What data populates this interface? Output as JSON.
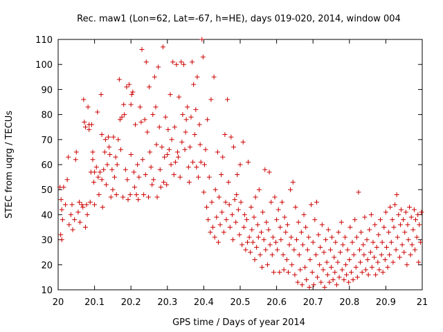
{
  "chart_data": {
    "type": "scatter",
    "title": "Rec. maw1 (Lon=62, Lat=-67, h=HE), days 019-020, 2014, window 004",
    "xlabel": "GPS time / Days of year 2014",
    "ylabel": "STEC from uqrg / TECUs",
    "xlim": [
      20,
      21
    ],
    "ylim": [
      10,
      110
    ],
    "xticks": [
      "20",
      "20.1",
      "20.2",
      "20.3",
      "20.4",
      "20.5",
      "20.6",
      "20.7",
      "20.8",
      "20.9",
      "21"
    ],
    "yticks": [
      "10",
      "20",
      "30",
      "40",
      "50",
      "60",
      "70",
      "80",
      "90",
      "100",
      "110"
    ],
    "grid": false,
    "legend": "none",
    "marker": "plus",
    "color": "#cc0000",
    "points": [
      [
        20.005,
        51
      ],
      [
        20.008,
        46
      ],
      [
        20.01,
        42
      ],
      [
        20.012,
        38
      ],
      [
        20.007,
        32
      ],
      [
        20.01,
        30
      ],
      [
        20.015,
        51
      ],
      [
        20.02,
        44
      ],
      [
        20.025,
        54
      ],
      [
        20.028,
        63
      ],
      [
        20.03,
        36
      ],
      [
        20.035,
        40
      ],
      [
        20.038,
        44
      ],
      [
        20.04,
        34
      ],
      [
        20.045,
        38
      ],
      [
        20.048,
        62
      ],
      [
        20.05,
        65
      ],
      [
        20.055,
        41
      ],
      [
        20.058,
        45
      ],
      [
        20.06,
        37
      ],
      [
        20.065,
        44
      ],
      [
        20.068,
        43
      ],
      [
        20.07,
        86
      ],
      [
        20.072,
        77
      ],
      [
        20.075,
        75
      ],
      [
        20.075,
        35
      ],
      [
        20.078,
        44
      ],
      [
        20.08,
        40
      ],
      [
        20.082,
        83
      ],
      [
        20.085,
        76
      ],
      [
        20.085,
        74
      ],
      [
        20.088,
        45
      ],
      [
        20.09,
        57
      ],
      [
        20.092,
        76
      ],
      [
        20.095,
        65
      ],
      [
        20.095,
        62
      ],
      [
        20.098,
        53
      ],
      [
        20.1,
        44
      ],
      [
        20.1,
        57
      ],
      [
        20.105,
        59
      ],
      [
        20.108,
        81
      ],
      [
        20.11,
        55
      ],
      [
        20.112,
        48
      ],
      [
        20.115,
        57
      ],
      [
        20.118,
        88
      ],
      [
        20.12,
        72
      ],
      [
        20.12,
        54
      ],
      [
        20.122,
        43
      ],
      [
        20.125,
        58
      ],
      [
        20.128,
        65
      ],
      [
        20.13,
        70
      ],
      [
        20.132,
        52
      ],
      [
        20.135,
        60
      ],
      [
        20.138,
        71
      ],
      [
        20.14,
        67
      ],
      [
        20.142,
        64
      ],
      [
        20.145,
        47
      ],
      [
        20.148,
        58
      ],
      [
        20.15,
        50
      ],
      [
        20.152,
        71
      ],
      [
        20.155,
        55
      ],
      [
        20.158,
        63
      ],
      [
        20.16,
        48
      ],
      [
        20.162,
        60
      ],
      [
        20.165,
        70
      ],
      [
        20.168,
        94
      ],
      [
        20.17,
        78
      ],
      [
        20.172,
        66
      ],
      [
        20.175,
        79
      ],
      [
        20.178,
        47
      ],
      [
        20.18,
        84
      ],
      [
        20.182,
        80
      ],
      [
        20.185,
        58
      ],
      [
        20.188,
        91
      ],
      [
        20.19,
        54
      ],
      [
        20.192,
        46
      ],
      [
        20.195,
        92
      ],
      [
        20.198,
        48
      ],
      [
        20.2,
        64
      ],
      [
        20.2,
        84
      ],
      [
        20.202,
        88
      ],
      [
        20.205,
        89
      ],
      [
        20.208,
        57
      ],
      [
        20.21,
        51
      ],
      [
        20.212,
        76
      ],
      [
        20.215,
        48
      ],
      [
        20.218,
        60
      ],
      [
        20.22,
        46
      ],
      [
        20.222,
        55
      ],
      [
        20.225,
        83
      ],
      [
        20.228,
        77
      ],
      [
        20.23,
        106
      ],
      [
        20.232,
        62
      ],
      [
        20.235,
        48
      ],
      [
        20.238,
        78
      ],
      [
        20.24,
        56
      ],
      [
        20.242,
        101
      ],
      [
        20.245,
        73
      ],
      [
        20.248,
        47
      ],
      [
        20.25,
        91
      ],
      [
        20.252,
        65
      ],
      [
        20.255,
        59
      ],
      [
        20.258,
        52
      ],
      [
        20.26,
        80
      ],
      [
        20.262,
        54
      ],
      [
        20.265,
        95
      ],
      [
        20.268,
        83
      ],
      [
        20.27,
        68
      ],
      [
        20.272,
        47
      ],
      [
        20.275,
        99
      ],
      [
        20.278,
        75
      ],
      [
        20.28,
        58
      ],
      [
        20.282,
        51
      ],
      [
        20.285,
        67
      ],
      [
        20.288,
        107
      ],
      [
        20.29,
        53
      ],
      [
        20.292,
        63
      ],
      [
        20.295,
        79
      ],
      [
        20.298,
        52
      ],
      [
        20.3,
        64
      ],
      [
        20.302,
        74
      ],
      [
        20.305,
        66
      ],
      [
        20.308,
        88
      ],
      [
        20.31,
        60
      ],
      [
        20.312,
        70
      ],
      [
        20.315,
        101
      ],
      [
        20.318,
        56
      ],
      [
        20.32,
        75
      ],
      [
        20.322,
        61
      ],
      [
        20.325,
        100
      ],
      [
        20.328,
        65
      ],
      [
        20.33,
        63
      ],
      [
        20.332,
        87
      ],
      [
        20.335,
        55
      ],
      [
        20.338,
        101
      ],
      [
        20.34,
        69
      ],
      [
        20.342,
        80
      ],
      [
        20.345,
        100
      ],
      [
        20.348,
        66
      ],
      [
        20.35,
        73
      ],
      [
        20.352,
        78
      ],
      [
        20.355,
        83
      ],
      [
        20.358,
        59
      ],
      [
        20.36,
        53
      ],
      [
        20.362,
        67
      ],
      [
        20.365,
        79
      ],
      [
        20.368,
        101
      ],
      [
        20.37,
        61
      ],
      [
        20.372,
        92
      ],
      [
        20.375,
        72
      ],
      [
        20.378,
        82
      ],
      [
        20.38,
        59
      ],
      [
        20.382,
        95
      ],
      [
        20.385,
        55
      ],
      [
        20.388,
        76
      ],
      [
        20.39,
        68
      ],
      [
        20.392,
        61
      ],
      [
        20.395,
        110
      ],
      [
        20.398,
        103
      ],
      [
        20.4,
        49
      ],
      [
        20.402,
        60
      ],
      [
        20.405,
        66
      ],
      [
        20.408,
        43
      ],
      [
        20.41,
        78
      ],
      [
        20.412,
        38
      ],
      [
        20.415,
        55
      ],
      [
        20.418,
        33
      ],
      [
        20.42,
        86
      ],
      [
        20.422,
        45
      ],
      [
        20.425,
        35
      ],
      [
        20.428,
        95
      ],
      [
        20.43,
        31
      ],
      [
        20.432,
        50
      ],
      [
        20.435,
        39
      ],
      [
        20.438,
        65
      ],
      [
        20.44,
        29
      ],
      [
        20.442,
        47
      ],
      [
        20.445,
        36
      ],
      [
        20.448,
        56
      ],
      [
        20.45,
        41
      ],
      [
        20.452,
        63
      ],
      [
        20.455,
        33
      ],
      [
        20.458,
        72
      ],
      [
        20.46,
        45
      ],
      [
        20.462,
        38
      ],
      [
        20.465,
        86
      ],
      [
        20.468,
        53
      ],
      [
        20.47,
        44
      ],
      [
        20.472,
        35
      ],
      [
        20.475,
        71
      ],
      [
        20.478,
        40
      ],
      [
        20.48,
        30
      ],
      [
        20.482,
        67
      ],
      [
        20.485,
        46
      ],
      [
        20.488,
        37
      ],
      [
        20.49,
        48
      ],
      [
        20.492,
        56
      ],
      [
        20.495,
        42
      ],
      [
        20.498,
        32
      ],
      [
        20.5,
        60
      ],
      [
        20.502,
        45
      ],
      [
        20.505,
        28
      ],
      [
        20.508,
        69
      ],
      [
        20.51,
        35
      ],
      [
        20.512,
        40
      ],
      [
        20.515,
        26
      ],
      [
        20.518,
        38
      ],
      [
        20.52,
        29
      ],
      [
        20.522,
        61
      ],
      [
        20.525,
        31
      ],
      [
        20.528,
        25
      ],
      [
        20.53,
        43
      ],
      [
        20.532,
        34
      ],
      [
        20.535,
        29
      ],
      [
        20.538,
        39
      ],
      [
        20.54,
        22
      ],
      [
        20.542,
        47
      ],
      [
        20.545,
        27
      ],
      [
        20.548,
        36
      ],
      [
        20.55,
        31
      ],
      [
        20.552,
        50
      ],
      [
        20.555,
        24
      ],
      [
        20.558,
        33
      ],
      [
        20.56,
        19
      ],
      [
        20.562,
        41
      ],
      [
        20.565,
        30
      ],
      [
        20.568,
        58
      ],
      [
        20.57,
        26
      ],
      [
        20.572,
        37
      ],
      [
        20.575,
        20
      ],
      [
        20.578,
        34
      ],
      [
        20.58,
        57
      ],
      [
        20.582,
        28
      ],
      [
        20.585,
        45
      ],
      [
        20.588,
        24
      ],
      [
        20.59,
        31
      ],
      [
        20.592,
        17
      ],
      [
        20.595,
        47
      ],
      [
        20.598,
        29
      ],
      [
        20.6,
        38
      ],
      [
        20.602,
        26
      ],
      [
        20.605,
        42
      ],
      [
        20.608,
        17
      ],
      [
        20.61,
        35
      ],
      [
        20.612,
        30
      ],
      [
        20.615,
        45
      ],
      [
        20.618,
        24
      ],
      [
        20.62,
        18
      ],
      [
        20.622,
        39
      ],
      [
        20.625,
        33
      ],
      [
        20.628,
        22
      ],
      [
        20.63,
        36
      ],
      [
        20.632,
        17
      ],
      [
        20.635,
        28
      ],
      [
        20.638,
        50
      ],
      [
        20.64,
        31
      ],
      [
        20.642,
        20
      ],
      [
        20.645,
        53
      ],
      [
        20.648,
        26
      ],
      [
        20.65,
        16
      ],
      [
        20.652,
        43
      ],
      [
        20.655,
        30
      ],
      [
        20.658,
        13
      ],
      [
        20.66,
        37
      ],
      [
        20.662,
        24
      ],
      [
        20.665,
        18
      ],
      [
        20.668,
        33
      ],
      [
        20.67,
        12
      ],
      [
        20.672,
        28
      ],
      [
        20.675,
        40
      ],
      [
        20.678,
        19
      ],
      [
        20.68,
        35
      ],
      [
        20.682,
        14
      ],
      [
        20.685,
        26
      ],
      [
        20.688,
        31
      ],
      [
        20.69,
        11
      ],
      [
        20.692,
        22
      ],
      [
        20.695,
        44
      ],
      [
        20.698,
        17
      ],
      [
        20.7,
        29
      ],
      [
        20.702,
        12
      ],
      [
        20.705,
        38
      ],
      [
        20.708,
        24
      ],
      [
        20.71,
        45
      ],
      [
        20.712,
        15
      ],
      [
        20.715,
        32
      ],
      [
        20.718,
        20
      ],
      [
        20.72,
        27
      ],
      [
        20.722,
        13
      ],
      [
        20.725,
        36
      ],
      [
        20.728,
        18
      ],
      [
        20.73,
        25
      ],
      [
        20.732,
        11
      ],
      [
        20.735,
        30
      ],
      [
        20.738,
        21
      ],
      [
        20.74,
        16
      ],
      [
        20.742,
        34
      ],
      [
        20.745,
        13
      ],
      [
        20.748,
        26
      ],
      [
        20.75,
        19
      ],
      [
        20.752,
        31
      ],
      [
        20.755,
        14
      ],
      [
        20.758,
        23
      ],
      [
        20.76,
        17
      ],
      [
        20.762,
        29
      ],
      [
        20.765,
        12
      ],
      [
        20.768,
        21
      ],
      [
        20.77,
        33
      ],
      [
        20.772,
        15
      ],
      [
        20.775,
        25
      ],
      [
        20.778,
        37
      ],
      [
        20.78,
        18
      ],
      [
        20.782,
        28
      ],
      [
        20.785,
        14
      ],
      [
        20.788,
        31
      ],
      [
        20.79,
        20
      ],
      [
        20.792,
        16
      ],
      [
        20.795,
        26
      ],
      [
        20.798,
        13
      ],
      [
        20.8,
        22
      ],
      [
        20.802,
        35
      ],
      [
        20.805,
        17
      ],
      [
        20.808,
        29
      ],
      [
        20.81,
        14
      ],
      [
        20.812,
        24
      ],
      [
        20.815,
        38
      ],
      [
        20.818,
        19
      ],
      [
        20.82,
        31
      ],
      [
        20.822,
        15
      ],
      [
        20.825,
        49
      ],
      [
        20.828,
        26
      ],
      [
        20.83,
        21
      ],
      [
        20.832,
        33
      ],
      [
        20.835,
        17
      ],
      [
        20.838,
        28
      ],
      [
        20.84,
        24
      ],
      [
        20.842,
        39
      ],
      [
        20.845,
        18
      ],
      [
        20.848,
        30
      ],
      [
        20.85,
        22
      ],
      [
        20.852,
        16
      ],
      [
        20.855,
        34
      ],
      [
        20.858,
        25
      ],
      [
        20.86,
        40
      ],
      [
        20.862,
        19
      ],
      [
        20.865,
        29
      ],
      [
        20.868,
        23
      ],
      [
        20.87,
        36
      ],
      [
        20.872,
        16
      ],
      [
        20.875,
        27
      ],
      [
        20.878,
        21
      ],
      [
        20.88,
        32
      ],
      [
        20.882,
        18
      ],
      [
        20.885,
        38
      ],
      [
        20.888,
        24
      ],
      [
        20.89,
        29
      ],
      [
        20.892,
        17
      ],
      [
        20.895,
        35
      ],
      [
        20.898,
        22
      ],
      [
        20.9,
        41
      ],
      [
        20.902,
        27
      ],
      [
        20.905,
        19
      ],
      [
        20.908,
        33
      ],
      [
        20.91,
        24
      ],
      [
        20.912,
        43
      ],
      [
        20.915,
        29
      ],
      [
        20.918,
        38
      ],
      [
        20.92,
        21
      ],
      [
        20.922,
        35
      ],
      [
        20.925,
        44
      ],
      [
        20.928,
        26
      ],
      [
        20.93,
        48
      ],
      [
        20.932,
        31
      ],
      [
        20.935,
        40
      ],
      [
        20.938,
        23
      ],
      [
        20.94,
        36
      ],
      [
        20.942,
        42
      ],
      [
        20.945,
        28
      ],
      [
        20.948,
        38
      ],
      [
        20.95,
        25
      ],
      [
        20.952,
        33
      ],
      [
        20.955,
        41
      ],
      [
        20.958,
        20
      ],
      [
        20.96,
        36
      ],
      [
        20.962,
        30
      ],
      [
        20.965,
        43
      ],
      [
        20.968,
        24
      ],
      [
        20.97,
        39
      ],
      [
        20.972,
        28
      ],
      [
        20.975,
        34
      ],
      [
        20.978,
        42
      ],
      [
        20.98,
        26
      ],
      [
        20.982,
        38
      ],
      [
        20.985,
        31
      ],
      [
        20.988,
        40
      ],
      [
        20.99,
        21
      ],
      [
        20.992,
        36
      ],
      [
        20.995,
        29
      ],
      [
        20.998,
        41
      ]
    ]
  }
}
